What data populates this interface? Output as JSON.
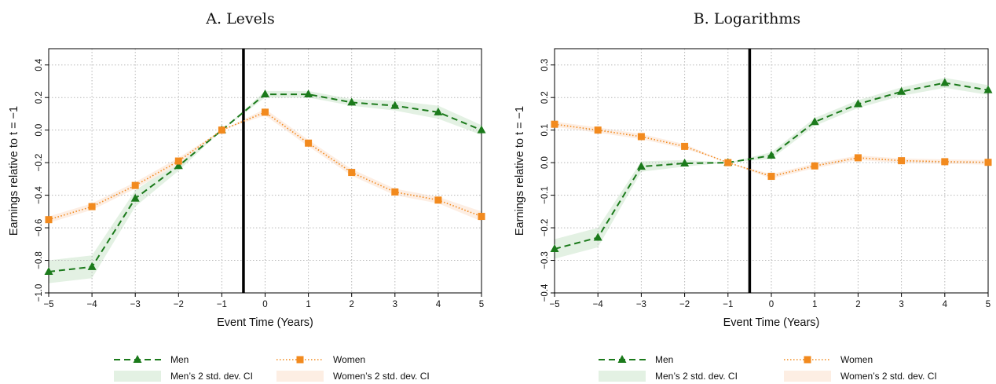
{
  "chart_data": [
    {
      "type": "line",
      "title": "A. Levels",
      "xlabel": "Event Time (Years)",
      "ylabel": "Earnings relative to t = −1",
      "x": [
        -5,
        -4,
        -3,
        -2,
        -1,
        0,
        1,
        2,
        3,
        4,
        5
      ],
      "xlim": [
        -5,
        5
      ],
      "ylim": [
        -1.0,
        0.5
      ],
      "yticks": [
        "−1.0",
        "−0.8",
        "−0.6",
        "−0.4",
        "−0.2",
        "0.0",
        "0.2",
        "0.4"
      ],
      "yticks_values": [
        -1.0,
        -0.8,
        -0.6,
        -0.4,
        -0.2,
        0.0,
        0.2,
        0.4
      ],
      "xticks": [
        "−5",
        "−4",
        "−3",
        "−2",
        "−1",
        "0",
        "1",
        "2",
        "3",
        "4",
        "5"
      ],
      "event_line_x": -0.5,
      "grid": true,
      "series": [
        {
          "name": "Men",
          "color": "#1b7a1b",
          "marker": "triangle",
          "linestyle": "dashed",
          "values": [
            -0.87,
            -0.84,
            -0.42,
            -0.22,
            0.0,
            0.22,
            0.22,
            0.17,
            0.15,
            0.11,
            0.0
          ]
        },
        {
          "name": "Women",
          "color": "#f28a1e",
          "marker": "square",
          "linestyle": "dotted",
          "values": [
            -0.55,
            -0.47,
            -0.34,
            -0.19,
            0.0,
            0.11,
            -0.08,
            -0.26,
            -0.38,
            -0.43,
            -0.53
          ]
        }
      ],
      "ci_bands": [
        {
          "name": "Men’s 2 std. dev. CI",
          "color": "#e3f1e3",
          "lower": [
            -0.94,
            -0.91,
            -0.47,
            -0.25,
            0.0,
            0.2,
            0.2,
            0.15,
            0.12,
            0.07,
            -0.03
          ],
          "upper": [
            -0.8,
            -0.77,
            -0.37,
            -0.19,
            0.0,
            0.24,
            0.24,
            0.19,
            0.18,
            0.15,
            0.03
          ]
        },
        {
          "name": "Women’s 2 std. dev. CI",
          "color": "#fdeee3",
          "lower": [
            -0.57,
            -0.49,
            -0.36,
            -0.21,
            0.0,
            0.09,
            -0.1,
            -0.28,
            -0.4,
            -0.45,
            -0.56
          ],
          "upper": [
            -0.53,
            -0.45,
            -0.32,
            -0.17,
            0.0,
            0.13,
            -0.06,
            -0.24,
            -0.36,
            -0.41,
            -0.5
          ]
        }
      ],
      "legend_position": "bottom"
    },
    {
      "type": "line",
      "title": "B. Logarithms",
      "xlabel": "Event Time (Years)",
      "ylabel": "Earnings relative to t = −1",
      "x": [
        -5,
        -4,
        -3,
        -2,
        -1,
        0,
        1,
        2,
        3,
        4,
        5
      ],
      "xlim": [
        -5,
        5
      ],
      "ylim": [
        -0.4,
        0.35
      ],
      "yticks": [
        "−0.4",
        "−0.3",
        "−0.2",
        "−0.1",
        "0.0",
        "0.1",
        "0.2",
        "0.3"
      ],
      "yticks_values": [
        -0.4,
        -0.3,
        -0.2,
        -0.1,
        0.0,
        0.1,
        0.2,
        0.3
      ],
      "xticks": [
        "−5",
        "−4",
        "−3",
        "−2",
        "−1",
        "0",
        "1",
        "2",
        "3",
        "4",
        "5"
      ],
      "event_line_x": -0.5,
      "grid": true,
      "series": [
        {
          "name": "Men",
          "color": "#1b7a1b",
          "marker": "triangle",
          "linestyle": "dashed",
          "values": [
            -0.265,
            -0.23,
            -0.012,
            -0.002,
            0.0,
            0.022,
            0.125,
            0.18,
            0.218,
            0.245,
            0.223
          ]
        },
        {
          "name": "Women",
          "color": "#f28a1e",
          "marker": "square",
          "linestyle": "dotted",
          "values": [
            0.118,
            0.1,
            0.08,
            0.05,
            0.0,
            -0.042,
            -0.01,
            0.015,
            0.006,
            0.003,
            0.001
          ]
        }
      ],
      "ci_bands": [
        {
          "name": "Men’s 2 std. dev. CI",
          "color": "#e3f1e3",
          "lower": [
            -0.295,
            -0.26,
            -0.028,
            -0.012,
            0.0,
            0.012,
            0.113,
            0.168,
            0.205,
            0.23,
            0.208
          ],
          "upper": [
            -0.235,
            -0.2,
            0.004,
            0.008,
            0.0,
            0.032,
            0.137,
            0.192,
            0.231,
            0.26,
            0.238
          ]
        },
        {
          "name": "Women’s 2 std. dev. CI",
          "color": "#fdeee3",
          "lower": [
            0.11,
            0.092,
            0.072,
            0.043,
            0.0,
            -0.049,
            -0.017,
            0.008,
            -0.001,
            -0.004,
            -0.006
          ],
          "upper": [
            0.126,
            0.108,
            0.088,
            0.057,
            0.0,
            -0.035,
            -0.003,
            0.022,
            0.013,
            0.01,
            0.008
          ]
        }
      ],
      "legend_position": "bottom"
    }
  ]
}
